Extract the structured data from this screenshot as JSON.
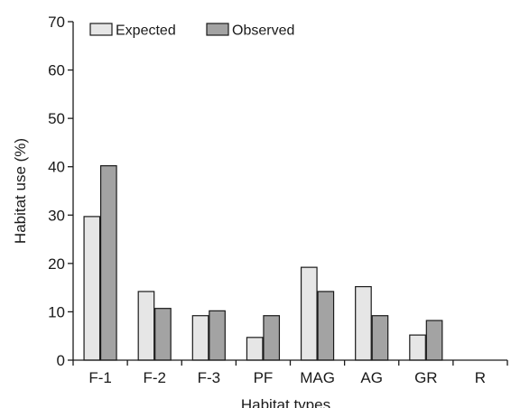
{
  "chart_data": {
    "type": "bar",
    "title": "",
    "xlabel": "Habitat types",
    "ylabel": "Habitat use (%)",
    "ylim": [
      0,
      70
    ],
    "yticks": [
      0,
      10,
      20,
      30,
      40,
      50,
      60,
      70
    ],
    "categories": [
      "F-1",
      "F-2",
      "F-3",
      "PF",
      "MAG",
      "AG",
      "GR",
      "R"
    ],
    "series": [
      {
        "name": "Expected",
        "color": "#e6e6e6",
        "values": [
          29.7,
          14.2,
          9.2,
          4.7,
          19.2,
          15.2,
          5.2,
          0
        ]
      },
      {
        "name": "Observed",
        "color": "#a3a3a3",
        "values": [
          40.2,
          10.7,
          10.2,
          9.2,
          14.2,
          9.2,
          8.2,
          0
        ]
      }
    ],
    "legend_position": "top-left",
    "grid": false
  }
}
